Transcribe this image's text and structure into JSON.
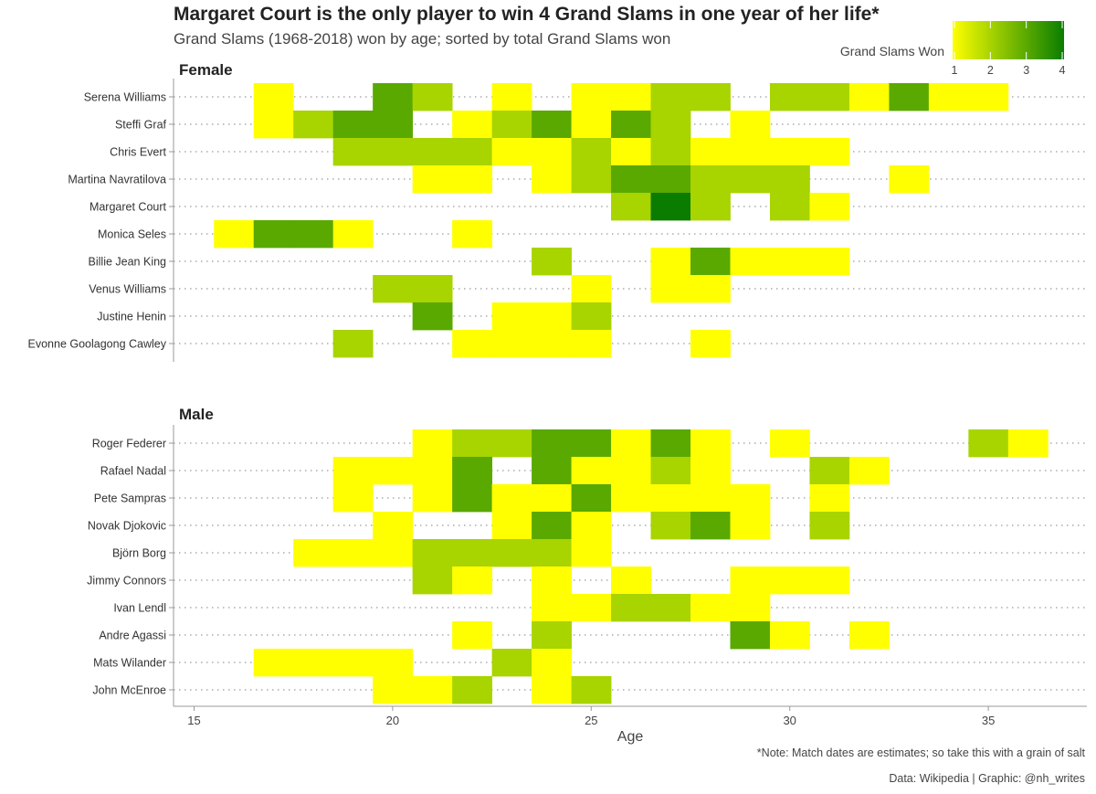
{
  "title": "Margaret Court is the only player to win 4 Grand Slams in one year of her life*",
  "subtitle": "Grand Slams (1968-2018) won by age; sorted by total Grand Slams won",
  "note": "*Note: Match dates are estimates; so take this with a grain of salt",
  "caption": "Data: Wikipedia | Graphic: @nh_writes",
  "colors": {
    "low": "#ffff00",
    "mid": "#a8d400",
    "high": "#0a7d00",
    "gridline": "#9a9a9a",
    "axis": "#999999"
  },
  "chart_data": {
    "type": "heatmap",
    "xlabel": "Age",
    "x_ticks": [
      15,
      20,
      25,
      30,
      35
    ],
    "xlim": [
      14.6,
      37.4
    ],
    "legend": {
      "title": "Grand Slams Won",
      "min": 1,
      "max": 4,
      "ticks": [
        1,
        2,
        3,
        4
      ],
      "placement": "top-right"
    },
    "facets": [
      {
        "label": "Female",
        "players": [
          {
            "name": "Serena Williams",
            "cells": [
              [
                17,
                1
              ],
              [
                20,
                3
              ],
              [
                21,
                2
              ],
              [
                23,
                1
              ],
              [
                25,
                1
              ],
              [
                26,
                1
              ],
              [
                27,
                2
              ],
              [
                28,
                2
              ],
              [
                30,
                2
              ],
              [
                31,
                2
              ],
              [
                32,
                1
              ],
              [
                33,
                3
              ],
              [
                34,
                1
              ],
              [
                35,
                1
              ]
            ]
          },
          {
            "name": "Steffi Graf",
            "cells": [
              [
                17,
                1
              ],
              [
                18,
                2
              ],
              [
                19,
                3
              ],
              [
                20,
                3
              ],
              [
                22,
                1
              ],
              [
                23,
                2
              ],
              [
                24,
                3
              ],
              [
                25,
                1
              ],
              [
                26,
                3
              ],
              [
                27,
                2
              ],
              [
                29,
                1
              ]
            ]
          },
          {
            "name": "Chris Evert",
            "cells": [
              [
                19,
                2
              ],
              [
                20,
                2
              ],
              [
                21,
                2
              ],
              [
                22,
                2
              ],
              [
                23,
                1
              ],
              [
                24,
                1
              ],
              [
                25,
                2
              ],
              [
                26,
                1
              ],
              [
                27,
                2
              ],
              [
                28,
                1
              ],
              [
                29,
                1
              ],
              [
                30,
                1
              ],
              [
                31,
                1
              ]
            ]
          },
          {
            "name": "Martina Navratilova",
            "cells": [
              [
                21,
                1
              ],
              [
                22,
                1
              ],
              [
                24,
                1
              ],
              [
                25,
                2
              ],
              [
                26,
                3
              ],
              [
                27,
                3
              ],
              [
                28,
                2
              ],
              [
                29,
                2
              ],
              [
                30,
                2
              ],
              [
                33,
                1
              ]
            ]
          },
          {
            "name": "Margaret Court",
            "cells": [
              [
                26,
                2
              ],
              [
                27,
                4
              ],
              [
                28,
                2
              ],
              [
                30,
                2
              ],
              [
                31,
                1
              ]
            ]
          },
          {
            "name": "Monica Seles",
            "cells": [
              [
                16,
                1
              ],
              [
                17,
                3
              ],
              [
                18,
                3
              ],
              [
                19,
                1
              ],
              [
                22,
                1
              ]
            ]
          },
          {
            "name": "Billie Jean King",
            "cells": [
              [
                24,
                2
              ],
              [
                27,
                1
              ],
              [
                28,
                3
              ],
              [
                29,
                1
              ],
              [
                30,
                1
              ],
              [
                31,
                1
              ]
            ]
          },
          {
            "name": "Venus Williams",
            "cells": [
              [
                20,
                2
              ],
              [
                21,
                2
              ],
              [
                25,
                1
              ],
              [
                27,
                1
              ],
              [
                28,
                1
              ]
            ]
          },
          {
            "name": "Justine Henin",
            "cells": [
              [
                21,
                3
              ],
              [
                23,
                1
              ],
              [
                24,
                1
              ],
              [
                25,
                2
              ]
            ]
          },
          {
            "name": "Evonne Goolagong Cawley",
            "cells": [
              [
                19,
                2
              ],
              [
                22,
                1
              ],
              [
                23,
                1
              ],
              [
                24,
                1
              ],
              [
                25,
                1
              ],
              [
                28,
                1
              ]
            ]
          }
        ]
      },
      {
        "label": "Male",
        "players": [
          {
            "name": "Roger Federer",
            "cells": [
              [
                21,
                1
              ],
              [
                22,
                2
              ],
              [
                23,
                2
              ],
              [
                24,
                3
              ],
              [
                25,
                3
              ],
              [
                26,
                1
              ],
              [
                27,
                3
              ],
              [
                28,
                1
              ],
              [
                30,
                1
              ],
              [
                35,
                2
              ],
              [
                36,
                1
              ]
            ]
          },
          {
            "name": "Rafael Nadal",
            "cells": [
              [
                19,
                1
              ],
              [
                20,
                1
              ],
              [
                21,
                1
              ],
              [
                22,
                3
              ],
              [
                24,
                3
              ],
              [
                25,
                1
              ],
              [
                26,
                1
              ],
              [
                27,
                2
              ],
              [
                28,
                1
              ],
              [
                31,
                2
              ],
              [
                32,
                1
              ]
            ]
          },
          {
            "name": "Pete Sampras",
            "cells": [
              [
                19,
                1
              ],
              [
                21,
                1
              ],
              [
                22,
                3
              ],
              [
                23,
                1
              ],
              [
                24,
                1
              ],
              [
                25,
                3
              ],
              [
                26,
                1
              ],
              [
                27,
                1
              ],
              [
                28,
                1
              ],
              [
                29,
                1
              ],
              [
                31,
                1
              ]
            ]
          },
          {
            "name": "Novak Djokovic",
            "cells": [
              [
                20,
                1
              ],
              [
                23,
                1
              ],
              [
                24,
                3
              ],
              [
                25,
                1
              ],
              [
                27,
                2
              ],
              [
                28,
                3
              ],
              [
                29,
                1
              ],
              [
                31,
                2
              ]
            ]
          },
          {
            "name": "Björn Borg",
            "cells": [
              [
                18,
                1
              ],
              [
                19,
                1
              ],
              [
                20,
                1
              ],
              [
                21,
                2
              ],
              [
                22,
                2
              ],
              [
                23,
                2
              ],
              [
                24,
                2
              ],
              [
                25,
                1
              ]
            ]
          },
          {
            "name": "Jimmy Connors",
            "cells": [
              [
                21,
                2
              ],
              [
                22,
                1
              ],
              [
                24,
                1
              ],
              [
                26,
                1
              ],
              [
                29,
                1
              ],
              [
                30,
                1
              ],
              [
                31,
                1
              ]
            ]
          },
          {
            "name": "Ivan Lendl",
            "cells": [
              [
                24,
                1
              ],
              [
                25,
                1
              ],
              [
                26,
                2
              ],
              [
                27,
                2
              ],
              [
                28,
                1
              ],
              [
                29,
                1
              ]
            ]
          },
          {
            "name": "Andre Agassi",
            "cells": [
              [
                22,
                1
              ],
              [
                24,
                2
              ],
              [
                29,
                3
              ],
              [
                30,
                1
              ],
              [
                32,
                1
              ]
            ]
          },
          {
            "name": "Mats Wilander",
            "cells": [
              [
                17,
                1
              ],
              [
                18,
                1
              ],
              [
                19,
                1
              ],
              [
                20,
                1
              ],
              [
                23,
                2
              ],
              [
                24,
                1
              ]
            ]
          },
          {
            "name": "John McEnroe",
            "cells": [
              [
                20,
                1
              ],
              [
                21,
                1
              ],
              [
                22,
                2
              ],
              [
                24,
                1
              ],
              [
                25,
                2
              ]
            ]
          }
        ]
      }
    ]
  }
}
